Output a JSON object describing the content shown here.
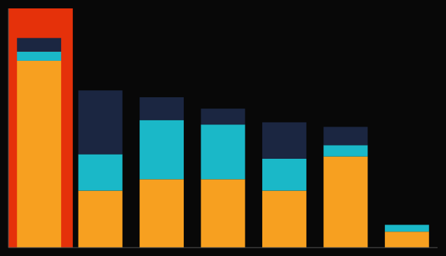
{
  "chart_data": {
    "type": "bar",
    "stacked": true,
    "categories": [
      null,
      null,
      null,
      null,
      null,
      null,
      null
    ],
    "series": [
      {
        "color": "#f7a020",
        "values": [
          82,
          25,
          30,
          30,
          25,
          40,
          7
        ]
      },
      {
        "color": "#1ab8c8",
        "values": [
          4,
          16,
          26,
          24,
          14,
          5,
          3
        ]
      },
      {
        "color": "#1b2641",
        "values": [
          6,
          28,
          10,
          7,
          16,
          8,
          0
        ]
      }
    ],
    "ylim": [
      0,
      105
    ],
    "grid": false,
    "tick_labels": false
  }
}
